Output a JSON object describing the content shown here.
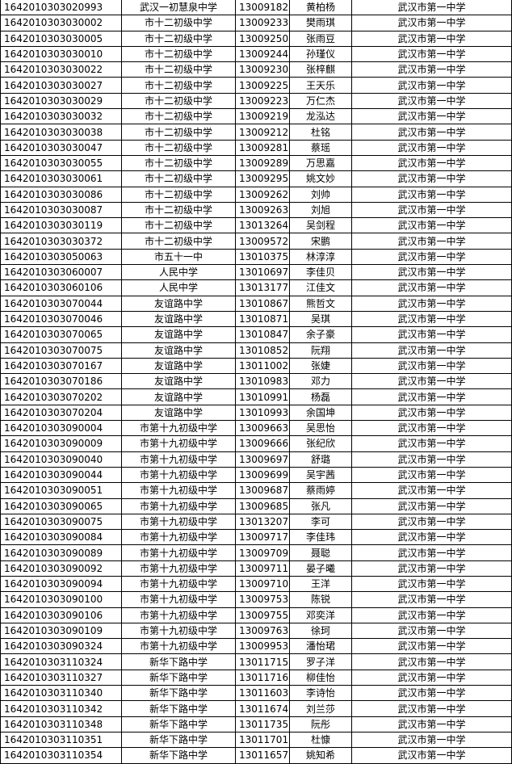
{
  "rows": [
    [
      "1642010303020993",
      "武汉一初慧泉中学",
      "13009182",
      "黄柏杨",
      "武汉市第一中学"
    ],
    [
      "1642010303030002",
      "市十二初级中学",
      "13009233",
      "樊雨琪",
      "武汉市第一中学"
    ],
    [
      "1642010303030005",
      "市十二初级中学",
      "13009250",
      "张雨豆",
      "武汉市第一中学"
    ],
    [
      "1642010303030010",
      "市十二初级中学",
      "13009244",
      "孙瑾仪",
      "武汉市第一中学"
    ],
    [
      "1642010303030022",
      "市十二初级中学",
      "13009230",
      "张梓麒",
      "武汉市第一中学"
    ],
    [
      "1642010303030027",
      "市十二初级中学",
      "13009225",
      "王天乐",
      "武汉市第一中学"
    ],
    [
      "1642010303030029",
      "市十二初级中学",
      "13009223",
      "万仁杰",
      "武汉市第一中学"
    ],
    [
      "1642010303030032",
      "市十二初级中学",
      "13009219",
      "龙泓达",
      "武汉市第一中学"
    ],
    [
      "1642010303030038",
      "市十二初级中学",
      "13009212",
      "杜铭",
      "武汉市第一中学"
    ],
    [
      "1642010303030047",
      "市十二初级中学",
      "13009281",
      "蔡瑶",
      "武汉市第一中学"
    ],
    [
      "1642010303030055",
      "市十二初级中学",
      "13009289",
      "万思嘉",
      "武汉市第一中学"
    ],
    [
      "1642010303030061",
      "市十二初级中学",
      "13009295",
      "姚文妙",
      "武汉市第一中学"
    ],
    [
      "1642010303030086",
      "市十二初级中学",
      "13009262",
      "刘帅",
      "武汉市第一中学"
    ],
    [
      "1642010303030087",
      "市十二初级中学",
      "13009263",
      "刘旭",
      "武汉市第一中学"
    ],
    [
      "1642010303030119",
      "市十二初级中学",
      "13013264",
      "吴剑程",
      "武汉市第一中学"
    ],
    [
      "1642010303030372",
      "市十二初级中学",
      "13009572",
      "宋鹏",
      "武汉市第一中学"
    ],
    [
      "1642010303050063",
      "市五十一中",
      "13010375",
      "林淳淳",
      "武汉市第一中学"
    ],
    [
      "1642010303060007",
      "人民中学",
      "13010697",
      "李佳贝",
      "武汉市第一中学"
    ],
    [
      "1642010303060106",
      "人民中学",
      "13013177",
      "江佳文",
      "武汉市第一中学"
    ],
    [
      "1642010303070044",
      "友谊路中学",
      "13010867",
      "熊哲文",
      "武汉市第一中学"
    ],
    [
      "1642010303070046",
      "友谊路中学",
      "13010871",
      "吴琪",
      "武汉市第一中学"
    ],
    [
      "1642010303070065",
      "友谊路中学",
      "13010847",
      "余子豪",
      "武汉市第一中学"
    ],
    [
      "1642010303070075",
      "友谊路中学",
      "13010852",
      "阮翔",
      "武汉市第一中学"
    ],
    [
      "1642010303070167",
      "友谊路中学",
      "13011002",
      "张婕",
      "武汉市第一中学"
    ],
    [
      "1642010303070186",
      "友谊路中学",
      "13010983",
      "邓力",
      "武汉市第一中学"
    ],
    [
      "1642010303070202",
      "友谊路中学",
      "13010991",
      "杨磊",
      "武汉市第一中学"
    ],
    [
      "1642010303070204",
      "友谊路中学",
      "13010993",
      "余国坤",
      "武汉市第一中学"
    ],
    [
      "1642010303090004",
      "市第十九初级中学",
      "13009663",
      "吴思怡",
      "武汉市第一中学"
    ],
    [
      "1642010303090009",
      "市第十九初级中学",
      "13009666",
      "张纪欣",
      "武汉市第一中学"
    ],
    [
      "1642010303090040",
      "市第十九初级中学",
      "13009697",
      "舒璐",
      "武汉市第一中学"
    ],
    [
      "1642010303090044",
      "市第十九初级中学",
      "13009699",
      "吴宇茜",
      "武汉市第一中学"
    ],
    [
      "1642010303090051",
      "市第十九初级中学",
      "13009687",
      "蔡雨婷",
      "武汉市第一中学"
    ],
    [
      "1642010303090065",
      "市第十九初级中学",
      "13009685",
      "张凡",
      "武汉市第一中学"
    ],
    [
      "1642010303090075",
      "市第十九初级中学",
      "13013207",
      "李可",
      "武汉市第一中学"
    ],
    [
      "1642010303090084",
      "市第十九初级中学",
      "13009717",
      "李佳玮",
      "武汉市第一中学"
    ],
    [
      "1642010303090089",
      "市第十九初级中学",
      "13009709",
      "聂聪",
      "武汉市第一中学"
    ],
    [
      "1642010303090092",
      "市第十九初级中学",
      "13009711",
      "晏子曦",
      "武汉市第一中学"
    ],
    [
      "1642010303090094",
      "市第十九初级中学",
      "13009710",
      "王洋",
      "武汉市第一中学"
    ],
    [
      "1642010303090100",
      "市第十九初级中学",
      "13009753",
      "陈锐",
      "武汉市第一中学"
    ],
    [
      "1642010303090106",
      "市第十九初级中学",
      "13009755",
      "邓奕洋",
      "武汉市第一中学"
    ],
    [
      "1642010303090109",
      "市第十九初级中学",
      "13009763",
      "徐珂",
      "武汉市第一中学"
    ],
    [
      "1642010303090324",
      "市第十九初级中学",
      "13009953",
      "潘怡珺",
      "武汉市第一中学"
    ],
    [
      "1642010303110324",
      "新华下路中学",
      "13011715",
      "罗子洋",
      "武汉市第一中学"
    ],
    [
      "1642010303110327",
      "新华下路中学",
      "13011716",
      "柳佳怡",
      "武汉市第一中学"
    ],
    [
      "1642010303110340",
      "新华下路中学",
      "13011603",
      "李诗怡",
      "武汉市第一中学"
    ],
    [
      "1642010303110342",
      "新华下路中学",
      "13011674",
      "刘兰莎",
      "武汉市第一中学"
    ],
    [
      "1642010303110348",
      "新华下路中学",
      "13011735",
      "阮彤",
      "武汉市第一中学"
    ],
    [
      "1642010303110351",
      "新华下路中学",
      "13011701",
      "杜慷",
      "武汉市第一中学"
    ],
    [
      "1642010303110354",
      "新华下路中学",
      "13011657",
      "姚知希",
      "武汉市第一中学"
    ]
  ]
}
